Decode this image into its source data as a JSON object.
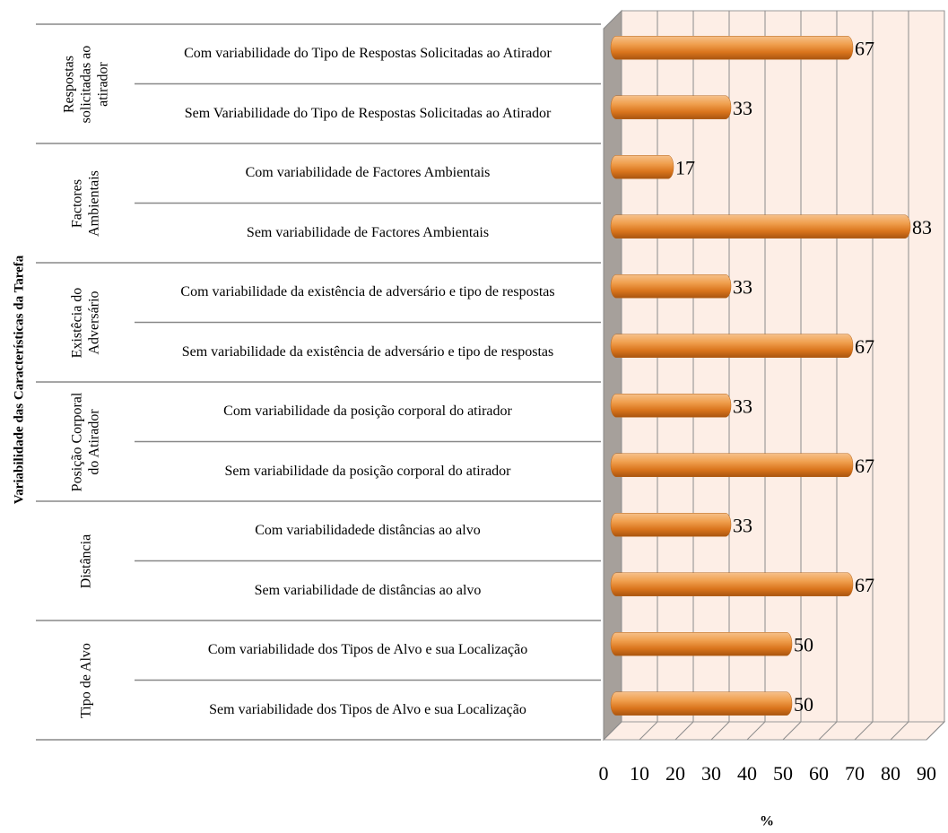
{
  "chart_data": {
    "type": "bar",
    "orientation": "horizontal",
    "y_title": "Variabilidade das Características da Tarefa",
    "x_title": "%",
    "color": "#e8862c",
    "xlim": [
      0,
      90
    ],
    "xticks": [
      0,
      10,
      20,
      30,
      40,
      50,
      60,
      70,
      80,
      90
    ],
    "grid": true,
    "groups": [
      {
        "label": "Respostas solicitadas ao atirador",
        "categories": [
          "Com  variabilidade do Tipo de Respostas Solicitadas ao Atirador",
          "Sem Variabilidade do Tipo de Respostas Solicitadas ao Atirador"
        ],
        "values": [
          67,
          33
        ]
      },
      {
        "label": "Factores Ambientais",
        "categories": [
          "Com  variabilidade de Factores Ambientais",
          "Sem variabilidade de Factores Ambientais"
        ],
        "values": [
          17,
          83
        ]
      },
      {
        "label": "Existêcia do Adversário",
        "categories": [
          "Com  variabilidade da existência de adversário e tipo de respostas",
          "Sem variabilidade da existência de adversário e tipo de respostas"
        ],
        "values": [
          33,
          67
        ]
      },
      {
        "label": "Posição Corporal do Atirador",
        "categories": [
          "Com  variabilidade da posição corporal do atirador",
          "Sem variabilidade da posição corporal do atirador"
        ],
        "values": [
          33,
          67
        ]
      },
      {
        "label": "Distância",
        "categories": [
          "Com  variabilidadede distâncias ao alvo",
          "Sem variabilidade de distâncias ao alvo"
        ],
        "values": [
          33,
          67
        ]
      },
      {
        "label": "Tipo de Alvo",
        "categories": [
          "Com  variabilidade dos Tipos de Alvo e sua Localização",
          "Sem variabilidade dos Tipos de Alvo e sua Localização"
        ],
        "values": [
          50,
          50
        ]
      }
    ]
  }
}
